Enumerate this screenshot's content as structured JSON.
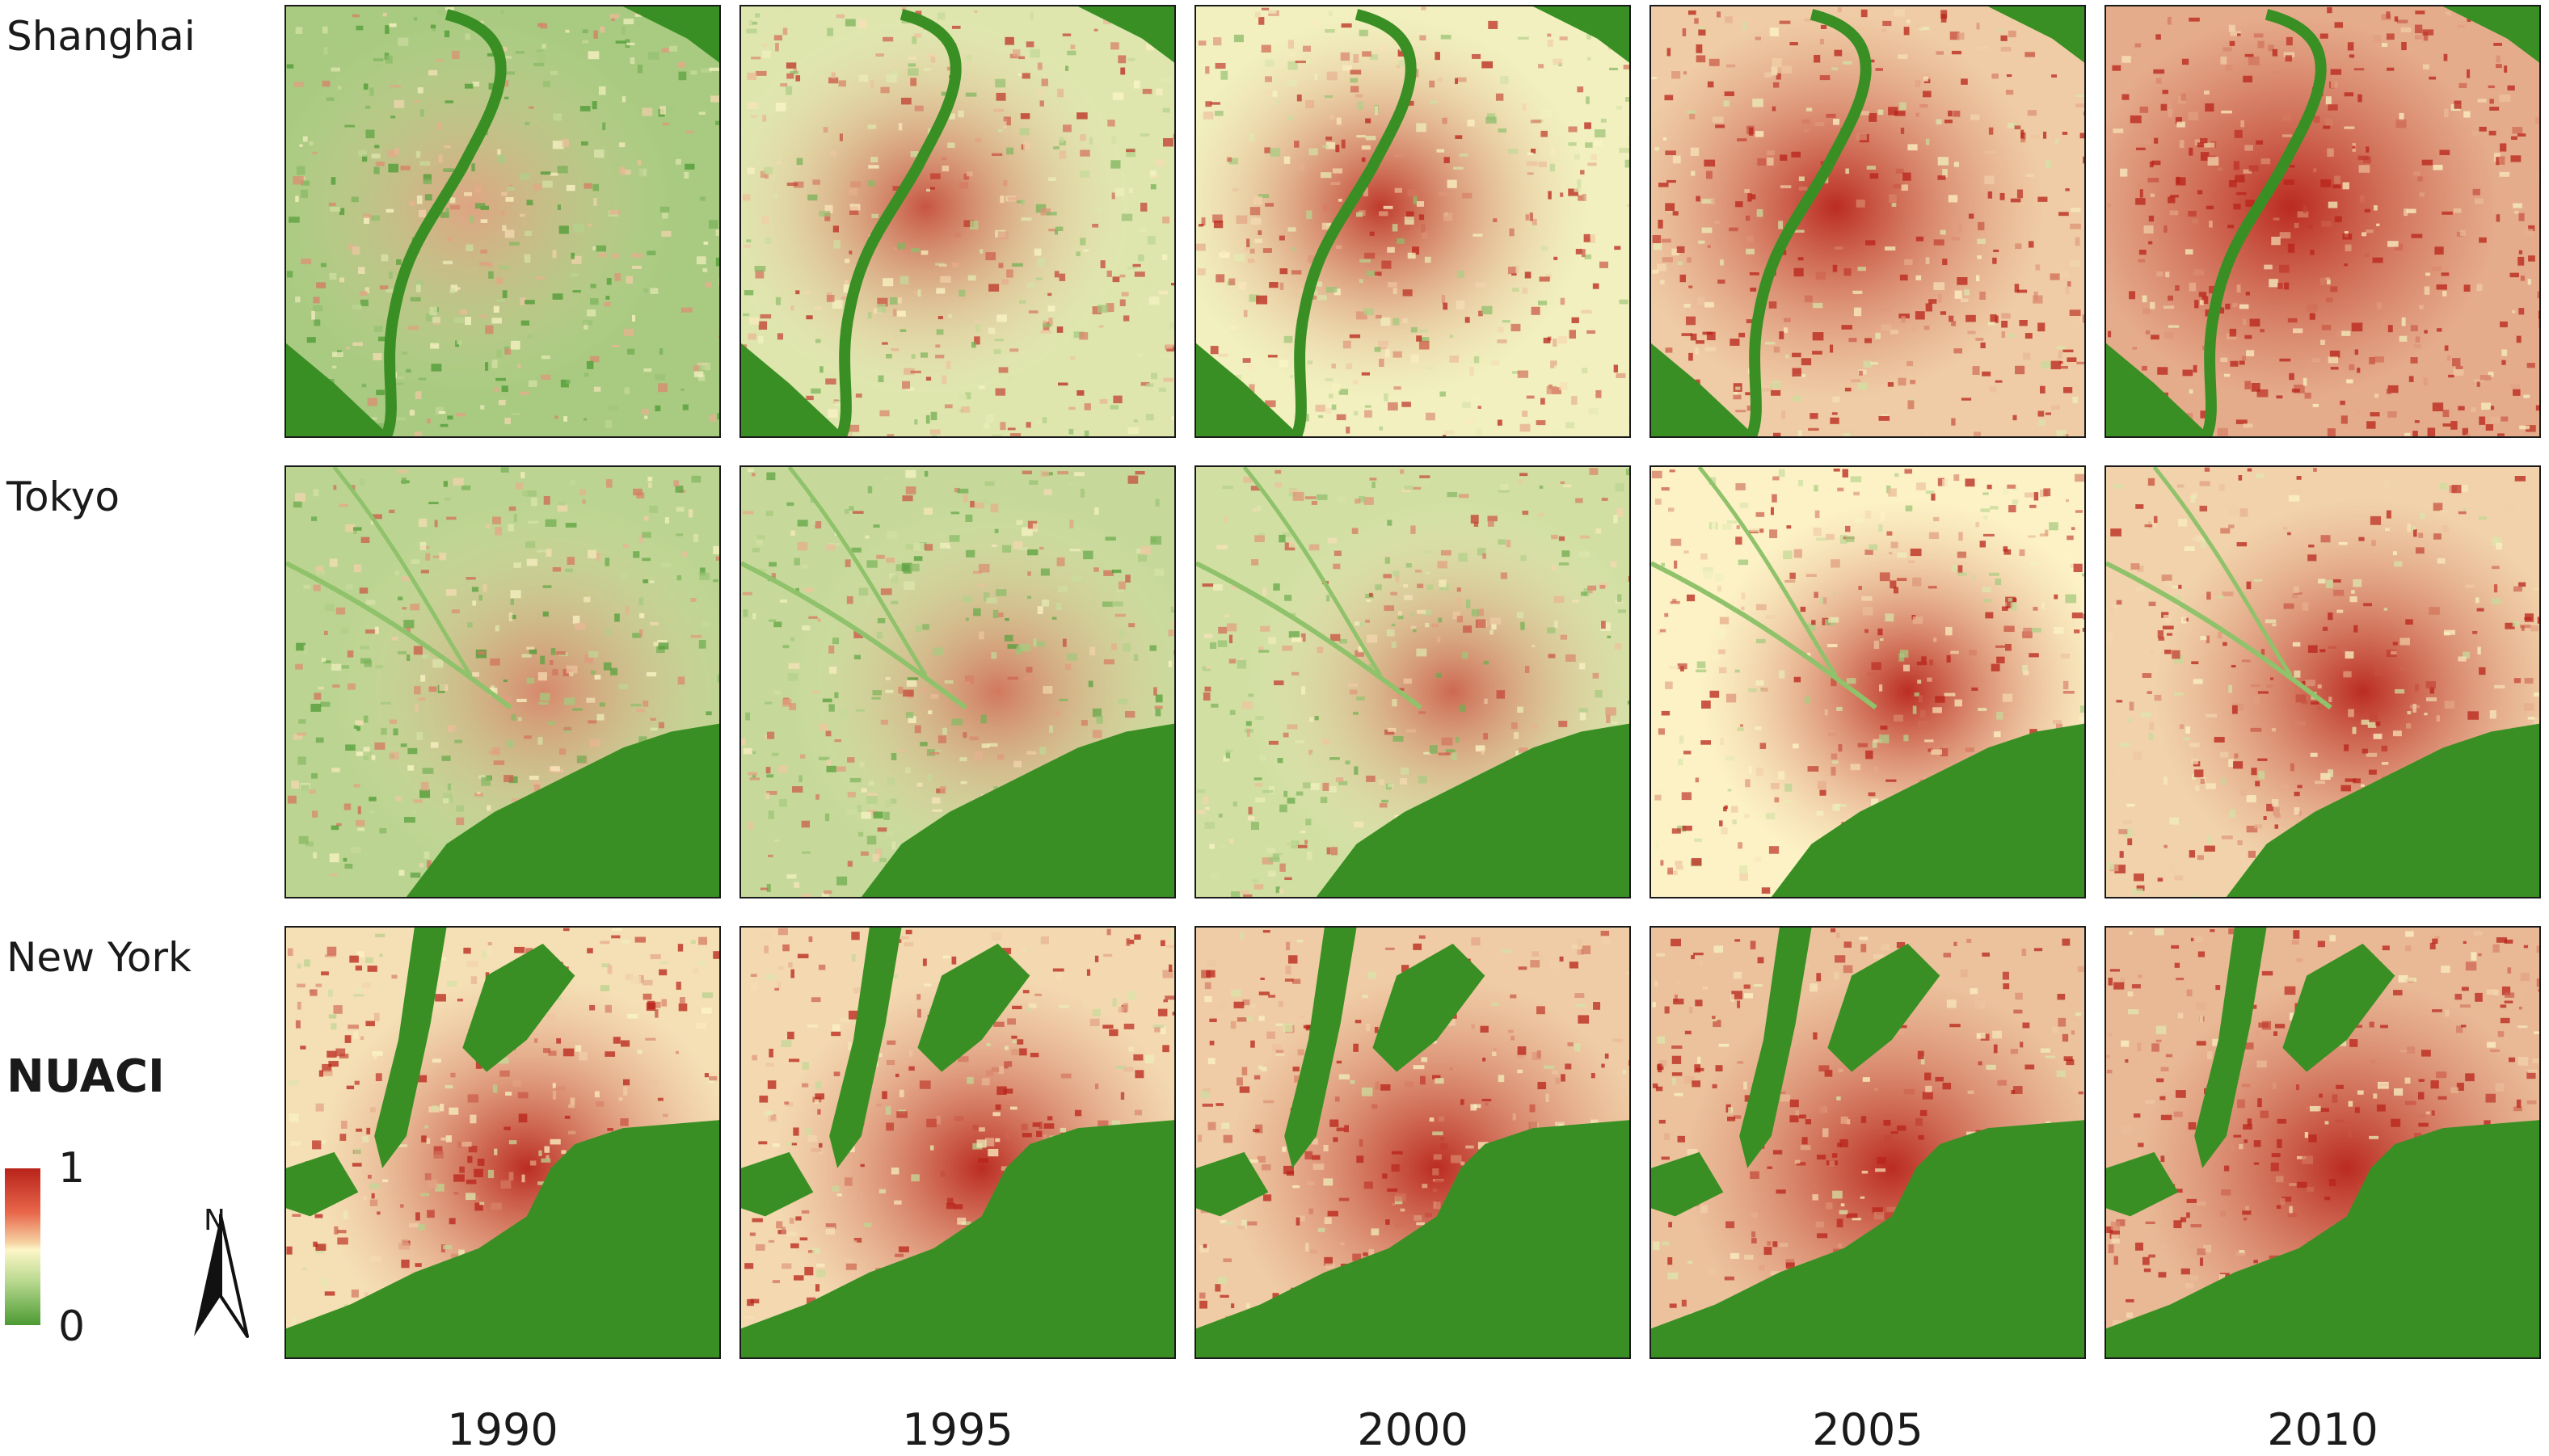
{
  "cities": [
    {
      "name": "Shanghai",
      "terrain": "river"
    },
    {
      "name": "Tokyo",
      "terrain": "bay"
    },
    {
      "name": "New York",
      "terrain": "harbor"
    }
  ],
  "years": [
    "1990",
    "1995",
    "2000",
    "2005",
    "2010"
  ],
  "urban_intensity": [
    [
      0.35,
      0.55,
      0.62,
      0.8,
      0.9
    ],
    [
      0.42,
      0.46,
      0.5,
      0.68,
      0.78
    ],
    [
      0.74,
      0.76,
      0.8,
      0.83,
      0.86
    ]
  ],
  "legend": {
    "title": "NUACI",
    "max_label": "1",
    "min_label": "0",
    "colors": {
      "high": "#b8231a",
      "mid": "#fdf6c8",
      "low": "#4c9a33"
    }
  },
  "north_arrow": {
    "label": "N",
    "icon": "north-arrow-icon"
  },
  "colors": {
    "water": "#3a8f24",
    "urban": "#c8321f",
    "mixed": "#ec8560",
    "sparse": "#e9d99a"
  }
}
